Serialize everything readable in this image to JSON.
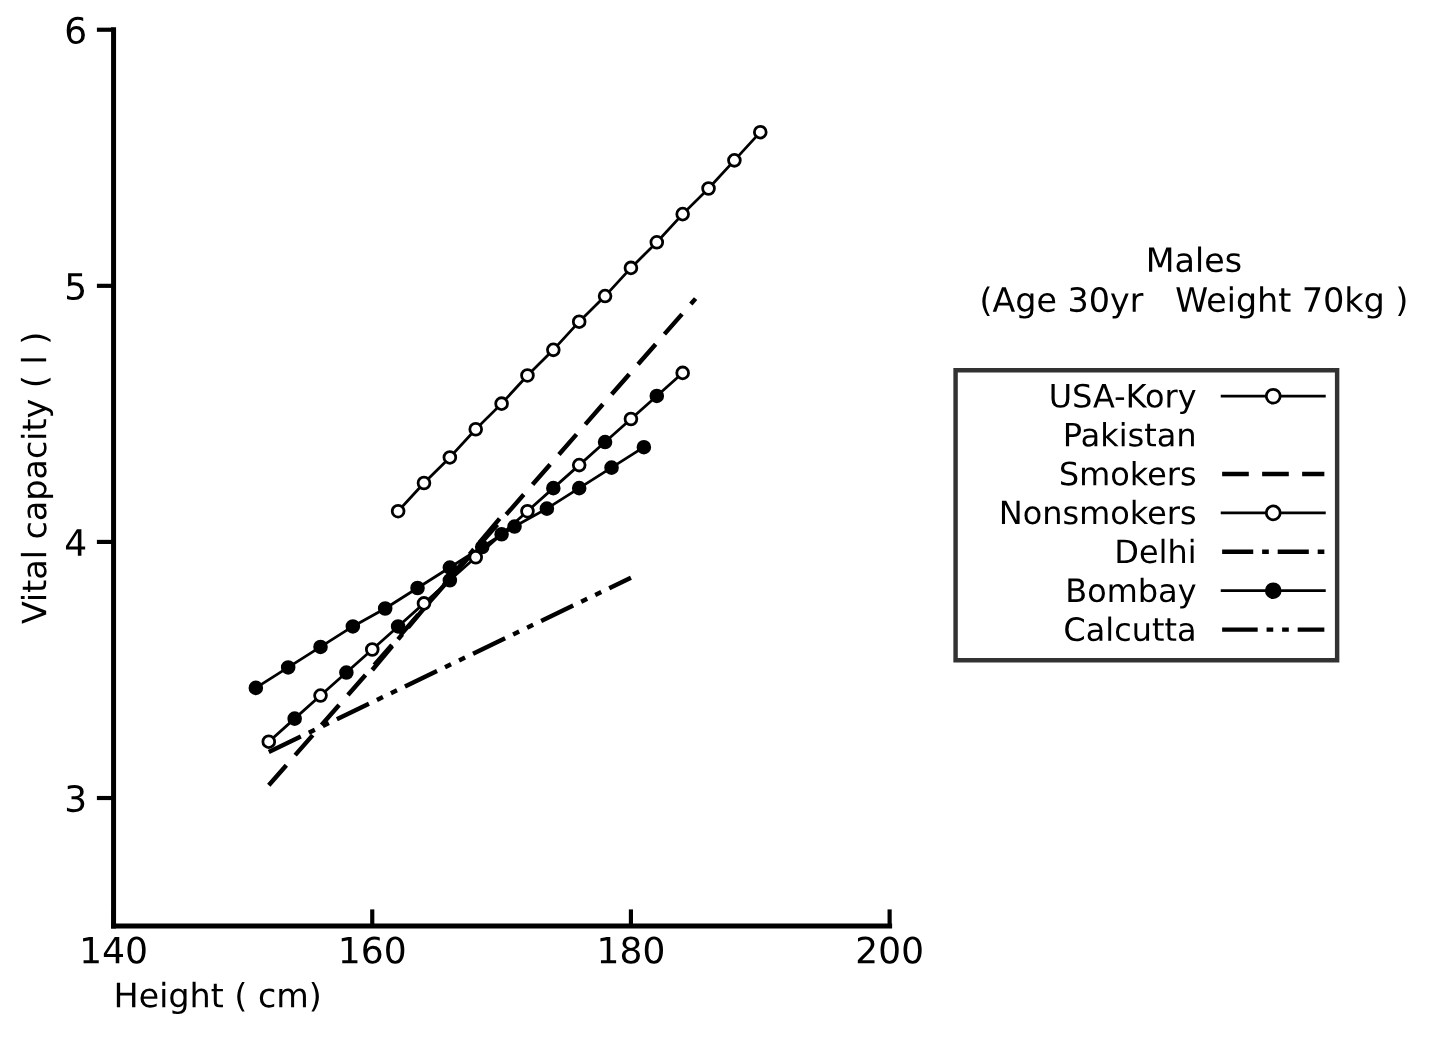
{
  "chart_data": {
    "type": "line",
    "xlabel": "Height ( cm)",
    "ylabel": "Vital capacity ( l )",
    "legend_title": "Males\n(Age 30yr   Weight 70kg )",
    "xlim": [
      140,
      200
    ],
    "xticks": [
      140,
      160,
      180,
      200
    ],
    "ylim": [
      2.5,
      6
    ],
    "yticks": [
      3,
      4,
      5,
      6
    ],
    "grid": false,
    "legend": "right",
    "annotations": [
      "Pakistan"
    ],
    "series": [
      {
        "name": "USA-Kory",
        "color": "#000000",
        "marker": "circle",
        "line_style": "solid",
        "x": [
          162,
          164,
          166,
          168,
          170,
          172,
          174,
          176,
          178,
          180,
          182,
          184,
          186,
          188,
          190
        ],
        "values": [
          4.12,
          4.23,
          4.33,
          4.44,
          4.54,
          4.65,
          4.75,
          4.86,
          4.96,
          5.07,
          5.17,
          5.28,
          5.38,
          5.49,
          5.6
        ]
      },
      {
        "name": "Smokers",
        "color": "#000000",
        "marker": "none",
        "line_style": "dashed",
        "x": [
          152,
          185
        ],
        "values": [
          3.05,
          4.95
        ]
      },
      {
        "name": "Nonsmokers",
        "color": "#000000",
        "marker": "circle",
        "line_style": "solid",
        "x": [
          152,
          154,
          156,
          158,
          160,
          162,
          164,
          166,
          168,
          170,
          172,
          174,
          176,
          178,
          180,
          182,
          184
        ],
        "values": [
          3.22,
          3.31,
          3.4,
          3.49,
          3.58,
          3.67,
          3.76,
          3.85,
          3.94,
          4.03,
          4.12,
          4.21,
          4.3,
          4.39,
          4.48,
          4.57,
          4.66
        ]
      },
      {
        "name": "Delhi",
        "color": "#000000",
        "marker": "none",
        "line_style": "dashdot",
        "x": [
          160,
          170
        ],
        "values": [
          3.5,
          4.1
        ]
      },
      {
        "name": "Bombay",
        "color": "#000000",
        "marker": "circle",
        "line_style": "solid",
        "x": [
          151,
          153.5,
          156,
          158.5,
          161,
          163.5,
          166,
          168.5,
          171,
          173.5,
          176,
          178.5,
          181
        ],
        "values": [
          3.43,
          3.51,
          3.59,
          3.67,
          3.74,
          3.82,
          3.9,
          3.98,
          4.06,
          4.13,
          4.21,
          4.29,
          4.37
        ]
      },
      {
        "name": "Calcutta",
        "color": "#000000",
        "marker": "none",
        "line_style": "dashdotdot",
        "x": [
          152,
          180
        ],
        "values": [
          3.18,
          3.86
        ]
      }
    ]
  }
}
